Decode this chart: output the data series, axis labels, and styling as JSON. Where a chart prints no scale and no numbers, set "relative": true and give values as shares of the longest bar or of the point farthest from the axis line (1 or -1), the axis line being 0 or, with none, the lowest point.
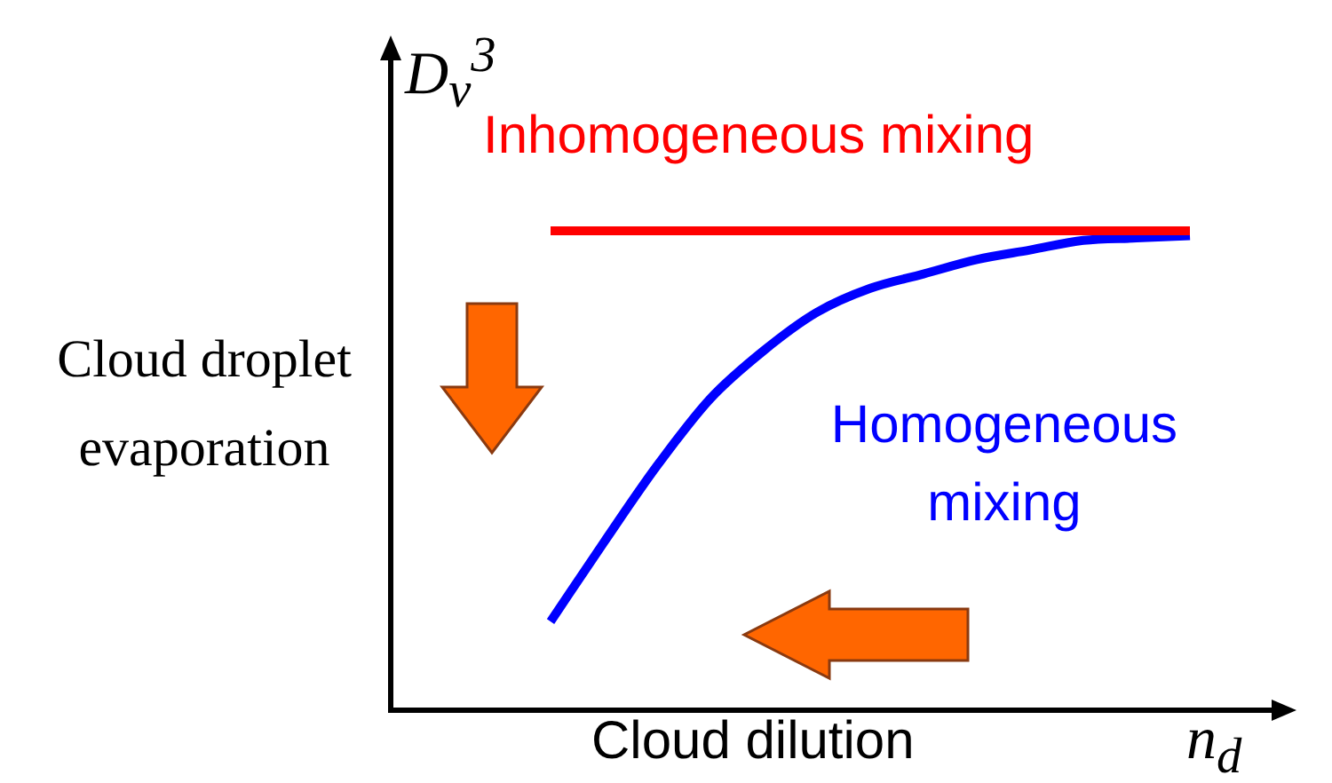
{
  "chart_data": {
    "type": "line",
    "relative": true,
    "xlabel": "n$_{d}$",
    "ylabel": "D$_{v}$$^{3}$",
    "annotations": [
      "Cloud droplet evaporation",
      "Cloud dilution"
    ],
    "categories": [
      null,
      null,
      null,
      null,
      null,
      null,
      null,
      null,
      null,
      null,
      null,
      null,
      null,
      null,
      null,
      null,
      null,
      null
    ],
    "series": [
      {
        "name": "Inhomogeneous mixing",
        "color": "#ff0000",
        "values": [
          null,
          null,
          null,
          1,
          1,
          1,
          1,
          1,
          1,
          1,
          1,
          1,
          1,
          1,
          1,
          1,
          null,
          null
        ]
      },
      {
        "name": "Homogeneous mixing",
        "color": "#0000ff",
        "values": [
          null,
          null,
          null,
          0.185,
          0.35,
          0.51,
          0.65,
          0.75,
          0.83,
          0.88,
          0.91,
          0.94,
          0.96,
          0.98,
          0.985,
          0.99,
          null,
          null
        ]
      }
    ],
    "legend": false,
    "grid": false,
    "tick_labels": false,
    "marker": "none"
  }
}
